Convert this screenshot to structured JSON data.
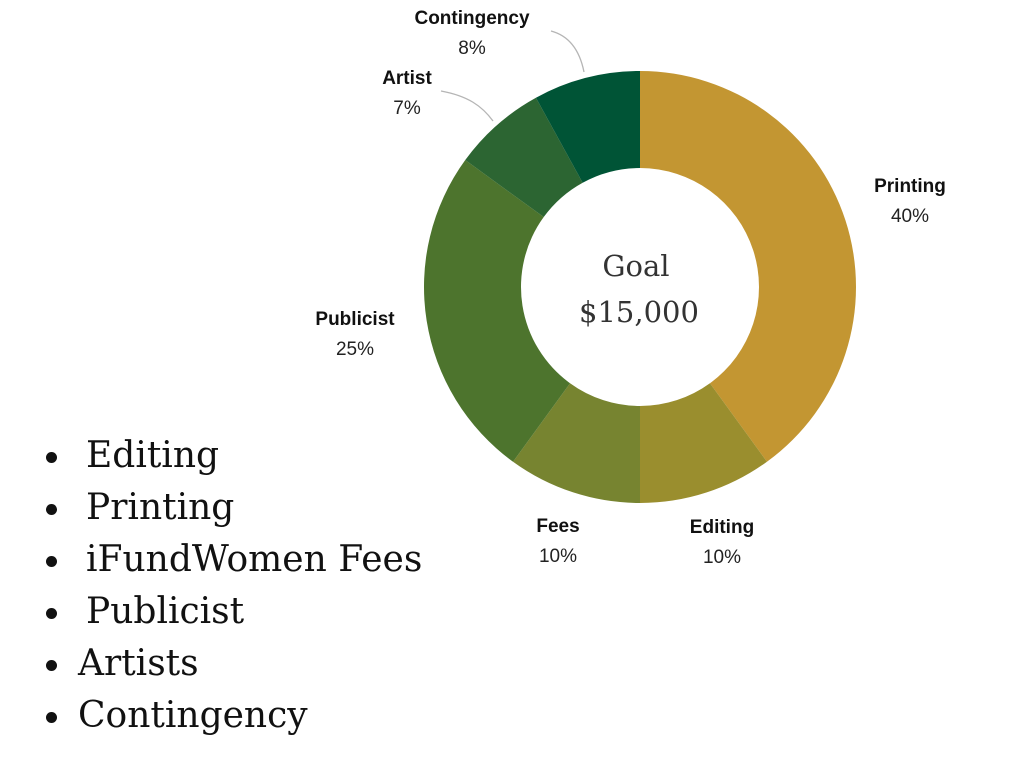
{
  "chart_data": {
    "type": "pie",
    "donut": true,
    "center_text": [
      "Goal",
      "$15,000"
    ],
    "slices": [
      {
        "label": "Printing",
        "value": 40,
        "pct_label": "40%",
        "color": "#C39632"
      },
      {
        "label": "Editing",
        "value": 10,
        "pct_label": "10%",
        "color": "#9A8E2E"
      },
      {
        "label": "Fees",
        "value": 10,
        "pct_label": "10%",
        "color": "#778430"
      },
      {
        "label": "Publicist",
        "value": 25,
        "pct_label": "25%",
        "color": "#4D742D"
      },
      {
        "label": "Artist",
        "value": 7,
        "pct_label": "7%",
        "color": "#2C6532"
      },
      {
        "label": "Contingency",
        "value": 8,
        "pct_label": "8%",
        "color": "#005436"
      }
    ]
  },
  "bullet_list": [
    "Editing",
    "Printing",
    "iFundWomen Fees",
    "Publicist",
    "Artists",
    "Contingency"
  ]
}
